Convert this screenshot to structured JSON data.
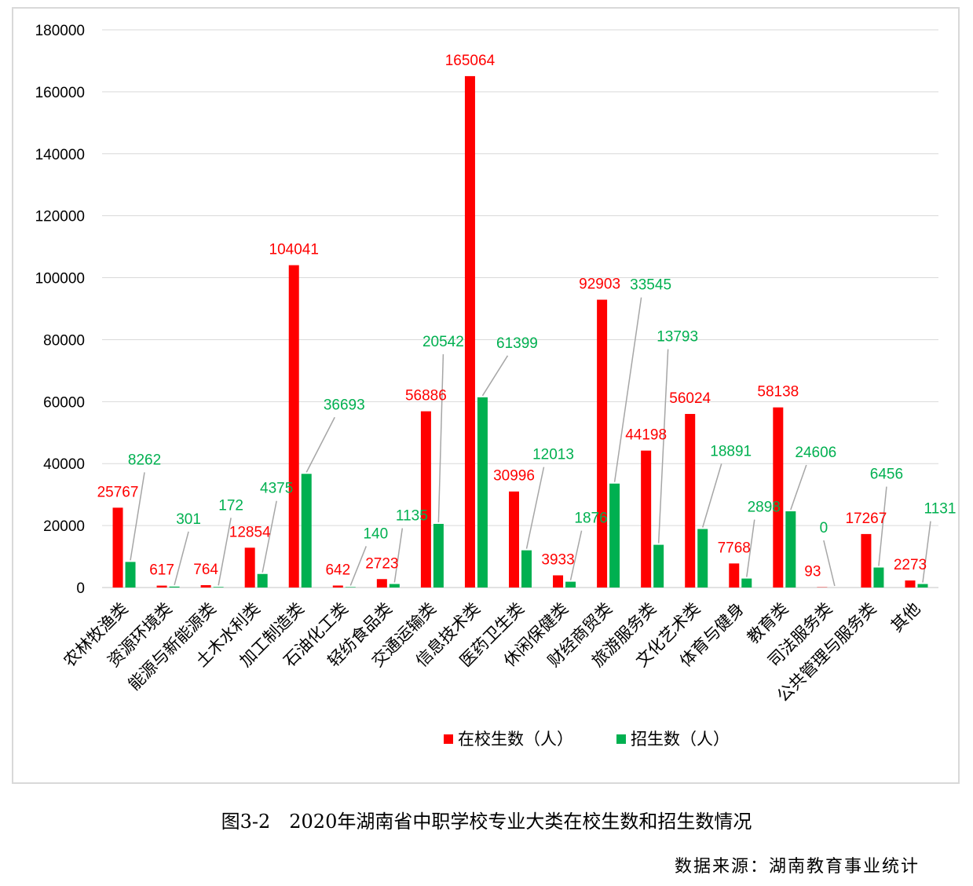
{
  "caption": "图3-2　2020年湖南省中职学校专业大类在校生数和招生数情况",
  "source": "数据来源：湖南教育事业统计",
  "colors": {
    "enrolled": "#ff0000",
    "admitted": "#00b050",
    "grid": "#d9d9d9",
    "leader": "#a6a6a6"
  },
  "chart_data": {
    "type": "bar",
    "ylim": [
      0,
      180000
    ],
    "yticks": [
      0,
      20000,
      40000,
      60000,
      80000,
      100000,
      120000,
      140000,
      160000,
      180000
    ],
    "grid": true,
    "legend_position": "bottom",
    "categories": [
      "农林牧渔类",
      "资源环境类",
      "能源与新能源类",
      "土木水利类",
      "加工制造类",
      "石油化工类",
      "轻纺食品类",
      "交通运输类",
      "信息技术类",
      "医药卫生类",
      "休闲保健类",
      "财经商贸类",
      "旅游服务类",
      "文化艺术类",
      "体育与健身",
      "教育类",
      "司法服务类",
      "公共管理与服务类",
      "其他"
    ],
    "series": [
      {
        "name": "在校生数（人）",
        "values": [
          25767,
          617,
          764,
          12854,
          104041,
          642,
          2723,
          56886,
          165064,
          30996,
          3933,
          92903,
          44198,
          56024,
          7768,
          58138,
          93,
          17267,
          2273
        ]
      },
      {
        "name": "招生数（人）",
        "values": [
          8262,
          301,
          172,
          4375,
          36693,
          140,
          1135,
          20542,
          61399,
          12013,
          1876,
          33545,
          13793,
          18891,
          2898,
          24606,
          0,
          6456,
          1131
        ]
      }
    ]
  }
}
